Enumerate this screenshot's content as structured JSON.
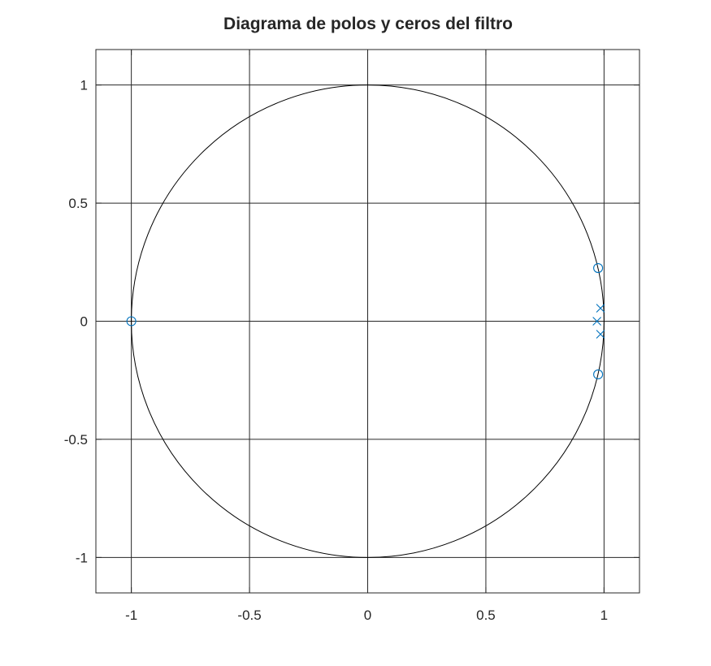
{
  "chart_data": {
    "type": "scatter",
    "title": "Diagrama de polos y ceros del filtro",
    "xlabel": "",
    "ylabel": "",
    "xlim": [
      -1.15,
      1.15
    ],
    "ylim": [
      -1.15,
      1.15
    ],
    "grid": true,
    "x_ticks": [
      -1,
      -0.5,
      0,
      0.5,
      1
    ],
    "y_ticks": [
      -1,
      -0.5,
      0,
      0.5,
      1
    ],
    "x_tick_labels": [
      "-1",
      "-0.5",
      "0",
      "0.5",
      "1"
    ],
    "y_tick_labels": [
      "-1",
      "-0.5",
      "0",
      "0.5",
      "1"
    ],
    "unit_circle": true,
    "marker_color": "#0072bd",
    "series": [
      {
        "marker": "circle",
        "points": [
          {
            "x": -1.0,
            "y": 0.0
          },
          {
            "x": 0.975,
            "y": 0.225
          },
          {
            "x": 0.975,
            "y": -0.225
          }
        ]
      },
      {
        "marker": "x",
        "points": [
          {
            "x": 0.97,
            "y": 0.0
          },
          {
            "x": 0.985,
            "y": 0.055
          },
          {
            "x": 0.985,
            "y": -0.055
          }
        ]
      }
    ]
  }
}
